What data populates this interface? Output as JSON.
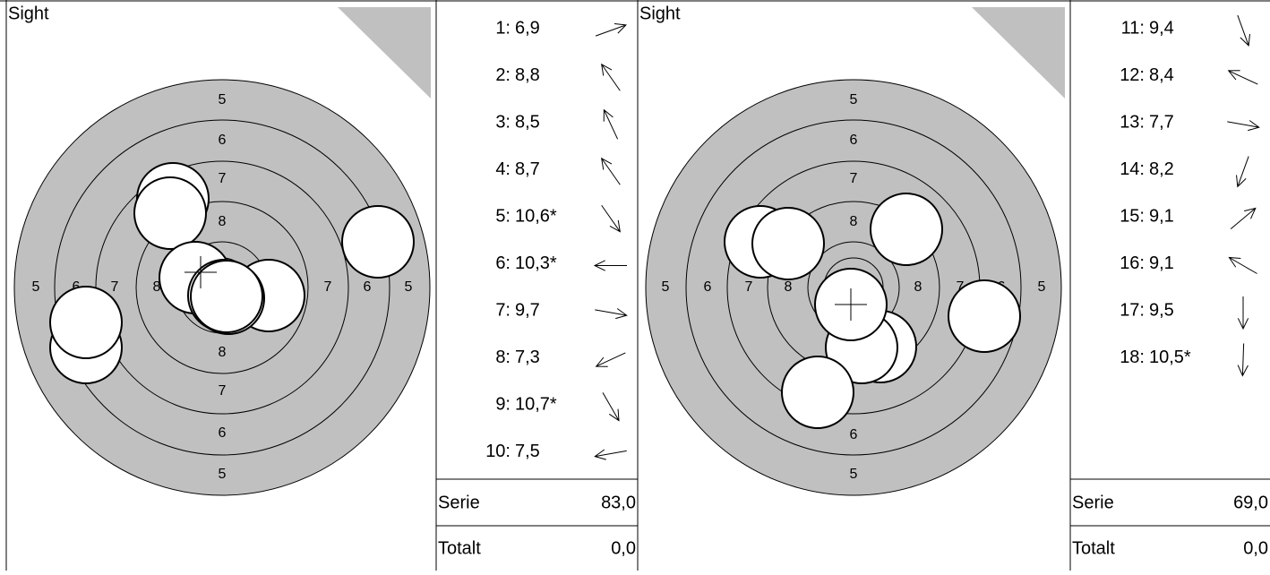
{
  "panels": [
    {
      "label": "Sight",
      "ring_labels_vertical": [
        "5",
        "6",
        "7",
        "8",
        "8",
        "7",
        "6",
        "5"
      ],
      "ring_labels_horizontal": [
        "5",
        "6",
        "7",
        "8",
        "8",
        "7",
        "6",
        "5"
      ],
      "shots": [
        {
          "number": "1:",
          "score": "6,9"
        },
        {
          "number": "2:",
          "score": "8,8"
        },
        {
          "number": "3:",
          "score": "8,5"
        },
        {
          "number": "4:",
          "score": "8,7"
        },
        {
          "number": "5:",
          "score": "10,6*"
        },
        {
          "number": "6:",
          "score": "10,3*"
        },
        {
          "number": "7:",
          "score": "9,7"
        },
        {
          "number": "8:",
          "score": "7,3"
        },
        {
          "number": "9:",
          "score": "10,7*"
        },
        {
          "number": "10:",
          "score": "7,5"
        }
      ],
      "serie_label": "Serie",
      "serie_value": "83,0",
      "totalt_label": "Totalt",
      "totalt_value": "0,0"
    },
    {
      "label": "Sight",
      "ring_labels_vertical": [
        "5",
        "6",
        "7",
        "8",
        "6",
        "5"
      ],
      "ring_labels_horizontal": [
        "5",
        "6",
        "7",
        "8",
        "8",
        "7",
        "6",
        "5"
      ],
      "shots": [
        {
          "number": "11:",
          "score": "9,4"
        },
        {
          "number": "12:",
          "score": "8,4"
        },
        {
          "number": "13:",
          "score": "7,7"
        },
        {
          "number": "14:",
          "score": "8,2"
        },
        {
          "number": "15:",
          "score": "9,1"
        },
        {
          "number": "16:",
          "score": "9,1"
        },
        {
          "number": "17:",
          "score": "9,5"
        },
        {
          "number": "18:",
          "score": "10,5*"
        }
      ],
      "serie_label": "Serie",
      "serie_value": "69,0",
      "totalt_label": "Totalt",
      "totalt_value": "0,0"
    }
  ]
}
